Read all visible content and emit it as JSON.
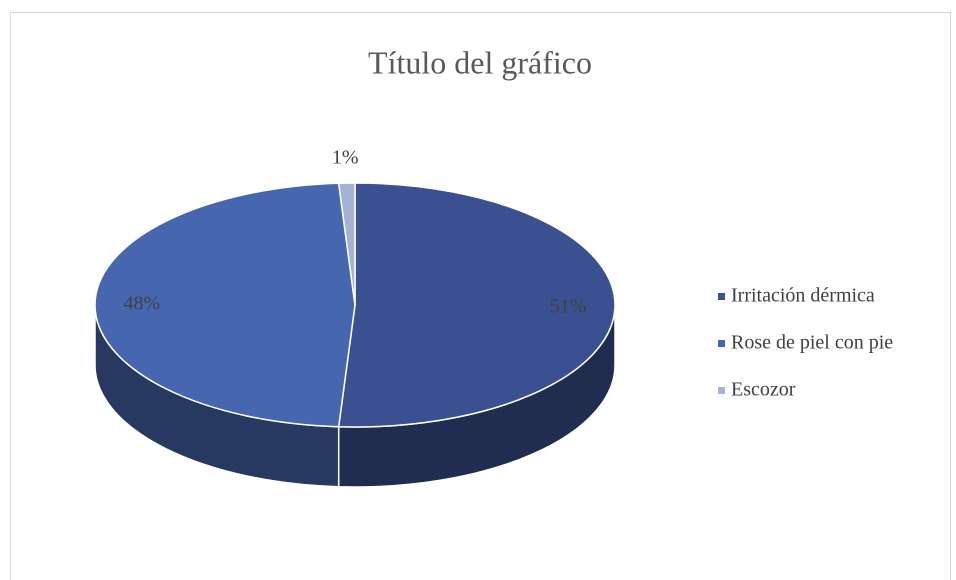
{
  "chart_data": {
    "type": "pie",
    "title": "Título del gráfico",
    "categories": [
      "Irritación dérmica",
      "Rose de piel con pie",
      "Escozor"
    ],
    "values": [
      51,
      48,
      1
    ],
    "value_labels": [
      "51%",
      "48%",
      "1%"
    ],
    "colors": [
      "#3a5091",
      "#4766b0",
      "#a6b1d6"
    ],
    "legend": "right"
  }
}
